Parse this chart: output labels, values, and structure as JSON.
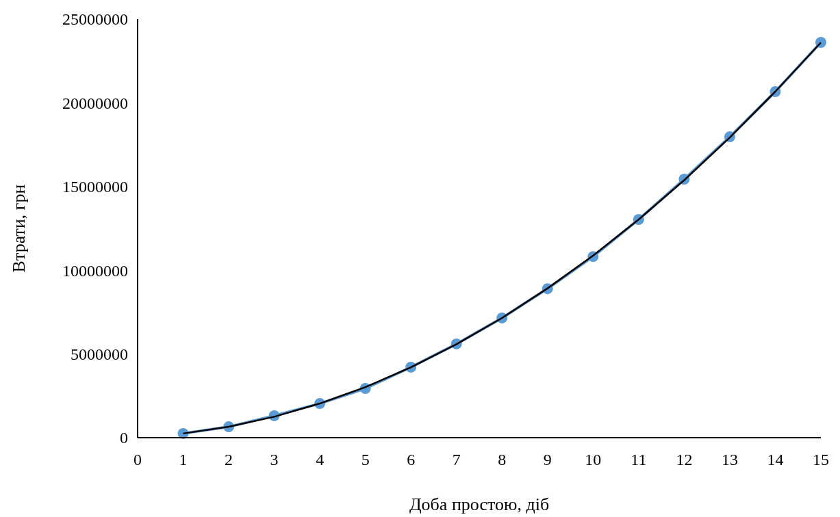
{
  "chart_data": {
    "type": "line",
    "xlabel": "Доба простою, діб",
    "ylabel": "Втрати, грн",
    "x": [
      1,
      2,
      3,
      4,
      5,
      6,
      7,
      8,
      9,
      10,
      11,
      12,
      13,
      14,
      15
    ],
    "series": [
      {
        "color": "#5b9bd5",
        "marker": "circle",
        "values": [
          250000,
          650000,
          1310000,
          2040000,
          2940000,
          4210000,
          5600000,
          7150000,
          8900000,
          10820000,
          13030000,
          15440000,
          17970000,
          20670000,
          23610000
        ]
      },
      {
        "color": "#000000",
        "marker": "none",
        "values": [
          250000,
          650000,
          1250000,
          2040000,
          3020000,
          4200000,
          5580000,
          7150000,
          8920000,
          10880000,
          13030000,
          15380000,
          17930000,
          20670000,
          23600000
        ]
      }
    ],
    "xlim": [
      0,
      15
    ],
    "xticks": [
      0,
      1,
      2,
      3,
      4,
      5,
      6,
      7,
      8,
      9,
      10,
      11,
      12,
      13,
      14,
      15
    ],
    "ylim": [
      0,
      25000000
    ],
    "yticks": [
      0,
      5000000,
      10000000,
      15000000,
      20000000,
      25000000
    ],
    "grid": false
  }
}
